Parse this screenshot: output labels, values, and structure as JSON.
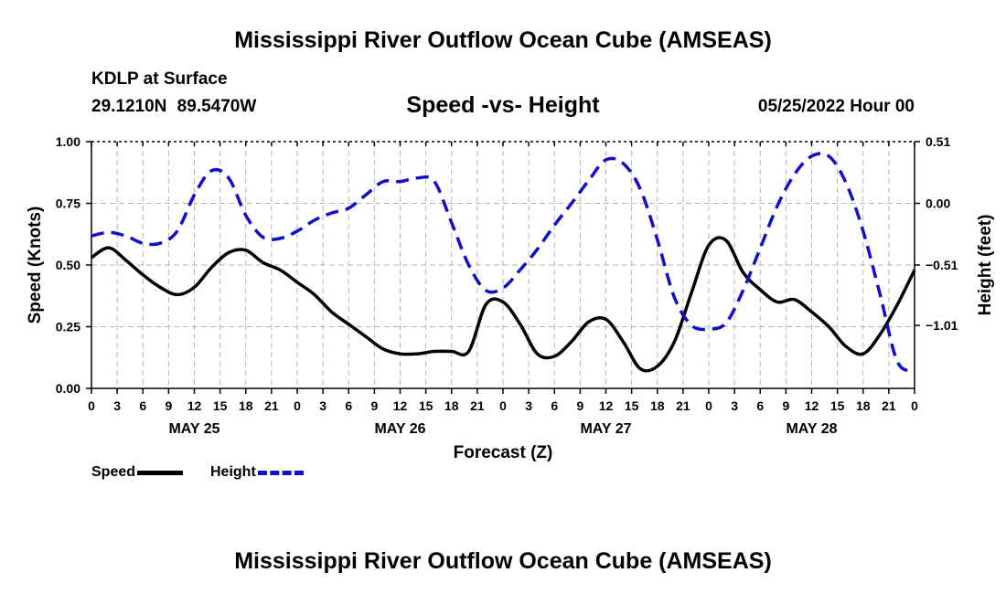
{
  "header": {
    "title": "Mississippi River Outflow Ocean Cube (AMSEAS)",
    "station": "KDLP at Surface",
    "coords": "29.1210N 89.5470W",
    "subtitle": "Speed -vs- Height",
    "datetime": "05/25/2022 Hour 00"
  },
  "footer": {
    "title": "Mississippi River Outflow Ocean Cube (AMSEAS)"
  },
  "legend": {
    "speed_label": "Speed",
    "height_label": "Height"
  },
  "chart_data": {
    "type": "line",
    "title": "Speed -vs- Height",
    "xlabel": "Forecast (Z)",
    "ylabel": "Speed (Knots)",
    "y2label": "Height (feet)",
    "xlim": [
      0,
      96
    ],
    "ylim": [
      0,
      1
    ],
    "y2lim": [
      -1.53,
      0.51
    ],
    "x_ticks": [
      0,
      3,
      6,
      9,
      12,
      15,
      18,
      21,
      24,
      27,
      30,
      33,
      36,
      39,
      42,
      45,
      48,
      51,
      54,
      57,
      60,
      63,
      66,
      69,
      72,
      75,
      78,
      81,
      84,
      87,
      90,
      93,
      96
    ],
    "x_tick_labels": [
      "0",
      "3",
      "6",
      "9",
      "12",
      "15",
      "18",
      "21",
      "0",
      "3",
      "6",
      "9",
      "12",
      "15",
      "18",
      "21",
      "0",
      "3",
      "6",
      "9",
      "12",
      "15",
      "18",
      "21",
      "0",
      "3",
      "6",
      "9",
      "12",
      "15",
      "18",
      "21",
      "0"
    ],
    "y_ticks": [
      0,
      0.25,
      0.5,
      0.75,
      1.0
    ],
    "y_tick_labels": [
      "0.00",
      "0.25",
      "0.50",
      "0.75",
      "1.00"
    ],
    "y2_ticks": [
      -1.01,
      -0.51,
      0.0,
      0.51
    ],
    "y2_tick_labels": [
      "−1.01",
      "−0.51",
      "0.00",
      "0.51"
    ],
    "day_labels": [
      {
        "x": 12,
        "label": "MAY 25"
      },
      {
        "x": 36,
        "label": "MAY 26"
      },
      {
        "x": 60,
        "label": "MAY 27"
      },
      {
        "x": 84,
        "label": "MAY 28"
      }
    ],
    "grid": true,
    "legend": "bottom-left",
    "series": [
      {
        "name": "Speed",
        "axis": "left",
        "color": "#000000",
        "dash": "solid",
        "x": [
          0,
          2,
          4,
          6,
          8,
          10,
          12,
          14,
          16,
          18,
          20,
          22,
          24,
          26,
          28,
          30,
          32,
          34,
          36,
          38,
          40,
          42,
          44,
          46,
          48,
          50,
          52,
          54,
          56,
          58,
          60,
          62,
          64,
          66,
          68,
          70,
          72,
          74,
          76,
          78,
          80,
          82,
          84,
          86,
          88,
          90,
          92,
          94,
          96
        ],
        "values": [
          0.53,
          0.57,
          0.52,
          0.46,
          0.41,
          0.38,
          0.41,
          0.49,
          0.55,
          0.56,
          0.51,
          0.48,
          0.43,
          0.38,
          0.31,
          0.26,
          0.21,
          0.16,
          0.14,
          0.14,
          0.15,
          0.15,
          0.15,
          0.34,
          0.35,
          0.26,
          0.14,
          0.13,
          0.19,
          0.27,
          0.28,
          0.19,
          0.08,
          0.09,
          0.19,
          0.39,
          0.58,
          0.6,
          0.47,
          0.4,
          0.35,
          0.36,
          0.31,
          0.25,
          0.17,
          0.14,
          0.22,
          0.34,
          0.48
        ]
      },
      {
        "name": "Height",
        "axis": "right",
        "color": "#1010c8",
        "dash": "dashed",
        "x": [
          0,
          2,
          4,
          6,
          8,
          10,
          12,
          14,
          16,
          18,
          20,
          22,
          24,
          26,
          28,
          30,
          32,
          34,
          36,
          38,
          40,
          42,
          44,
          46,
          48,
          50,
          52,
          54,
          56,
          58,
          60,
          62,
          64,
          66,
          68,
          70,
          72,
          74,
          76,
          78,
          80,
          82,
          84,
          86,
          88,
          90,
          92,
          94,
          96
        ],
        "values": [
          -0.27,
          -0.24,
          -0.27,
          -0.33,
          -0.33,
          -0.23,
          0.07,
          0.27,
          0.21,
          -0.1,
          -0.28,
          -0.29,
          -0.23,
          -0.14,
          -0.08,
          -0.04,
          0.07,
          0.18,
          0.18,
          0.21,
          0.18,
          -0.16,
          -0.51,
          -0.72,
          -0.7,
          -0.55,
          -0.38,
          -0.18,
          0.0,
          0.19,
          0.36,
          0.33,
          0.12,
          -0.3,
          -0.78,
          -1.01,
          -1.04,
          -0.99,
          -0.72,
          -0.37,
          -0.02,
          0.24,
          0.39,
          0.39,
          0.17,
          -0.23,
          -0.76,
          -1.31,
          -1.38
        ]
      }
    ]
  }
}
